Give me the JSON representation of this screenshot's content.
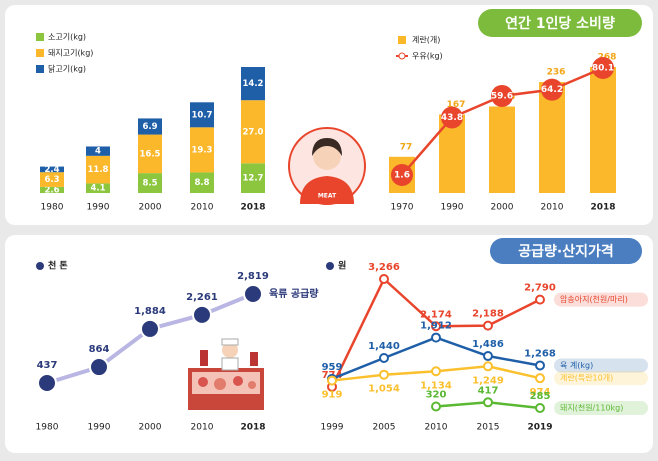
{
  "panels": [
    {
      "title": "연간 1인당 소비량"
    },
    {
      "title": "공급량·산지가격"
    }
  ],
  "illustration": {
    "label": "MEAT"
  },
  "chart_data": [
    {
      "type": "bar",
      "stacked": true,
      "categories": [
        "1980",
        "1990",
        "2000",
        "2010",
        "2018"
      ],
      "series": [
        {
          "name": "소고기(kg)",
          "color": "#8cc63f",
          "values": [
            2.6,
            4.1,
            8.5,
            8.8,
            12.7
          ]
        },
        {
          "name": "돼지고기(kg)",
          "color": "#fbb82b",
          "values": [
            6.3,
            11.8,
            16.5,
            19.3,
            27.0
          ],
          "value_labels": [
            "6.3",
            "11.8",
            "16.5",
            "19.3",
            "27.0"
          ]
        },
        {
          "name": "닭고기(kg)",
          "color": "#1f5fa8",
          "values": [
            2.4,
            4.0,
            6.9,
            10.7,
            14.2
          ]
        }
      ]
    },
    {
      "type": "combo",
      "categories": [
        "1970",
        "1990",
        "2000",
        "2010",
        "2018"
      ],
      "series": [
        {
          "name": "계란(개)",
          "color": "#fbb82b",
          "mark": "bar",
          "values": [
            77,
            167,
            184,
            236,
            268
          ]
        },
        {
          "name": "우유(kg)",
          "color": "#e8452c",
          "mark": "line",
          "axis": "y2",
          "values": [
            1.6,
            43.8,
            59.6,
            64.2,
            80.1
          ]
        }
      ]
    },
    {
      "type": "line",
      "unit": "천 톤",
      "categories": [
        "1980",
        "1990",
        "2000",
        "2010",
        "2018"
      ],
      "series": [
        {
          "name": "육류 공급량",
          "color": "#b9b6e3",
          "values": [
            437,
            864,
            1884,
            2261,
            2819
          ],
          "value_labels": [
            "437",
            "864",
            "1,884",
            "2,261",
            "2,819"
          ]
        }
      ]
    },
    {
      "type": "line",
      "unit": "원",
      "categories": [
        "1999",
        "2005",
        "2010",
        "2015",
        "2019"
      ],
      "series": [
        {
          "name": "암송아지(천원/마리)",
          "color": "#e8452c",
          "values": [
            774,
            3266,
            2174,
            2188,
            2790
          ],
          "value_labels": [
            "774",
            "3,266",
            "2,174",
            "2,188",
            "2,790"
          ]
        },
        {
          "name": "육   계(kg)",
          "color": "#1f5fa8",
          "values": [
            959,
            1440,
            1912,
            1486,
            1268
          ],
          "value_labels": [
            "959",
            "1,440",
            "1,912",
            "1,486",
            "1,268"
          ]
        },
        {
          "name": "계란(특란10개)",
          "color": "#fbc02d",
          "values": [
            919,
            1054,
            1134,
            1249,
            974
          ],
          "value_labels": [
            "919",
            "1,054",
            "1,134",
            "1,249",
            "974"
          ]
        },
        {
          "name": "돼지(천원/110kg)",
          "color": "#5bb833",
          "values": [
            null,
            null,
            320,
            417,
            285
          ]
        }
      ]
    }
  ]
}
